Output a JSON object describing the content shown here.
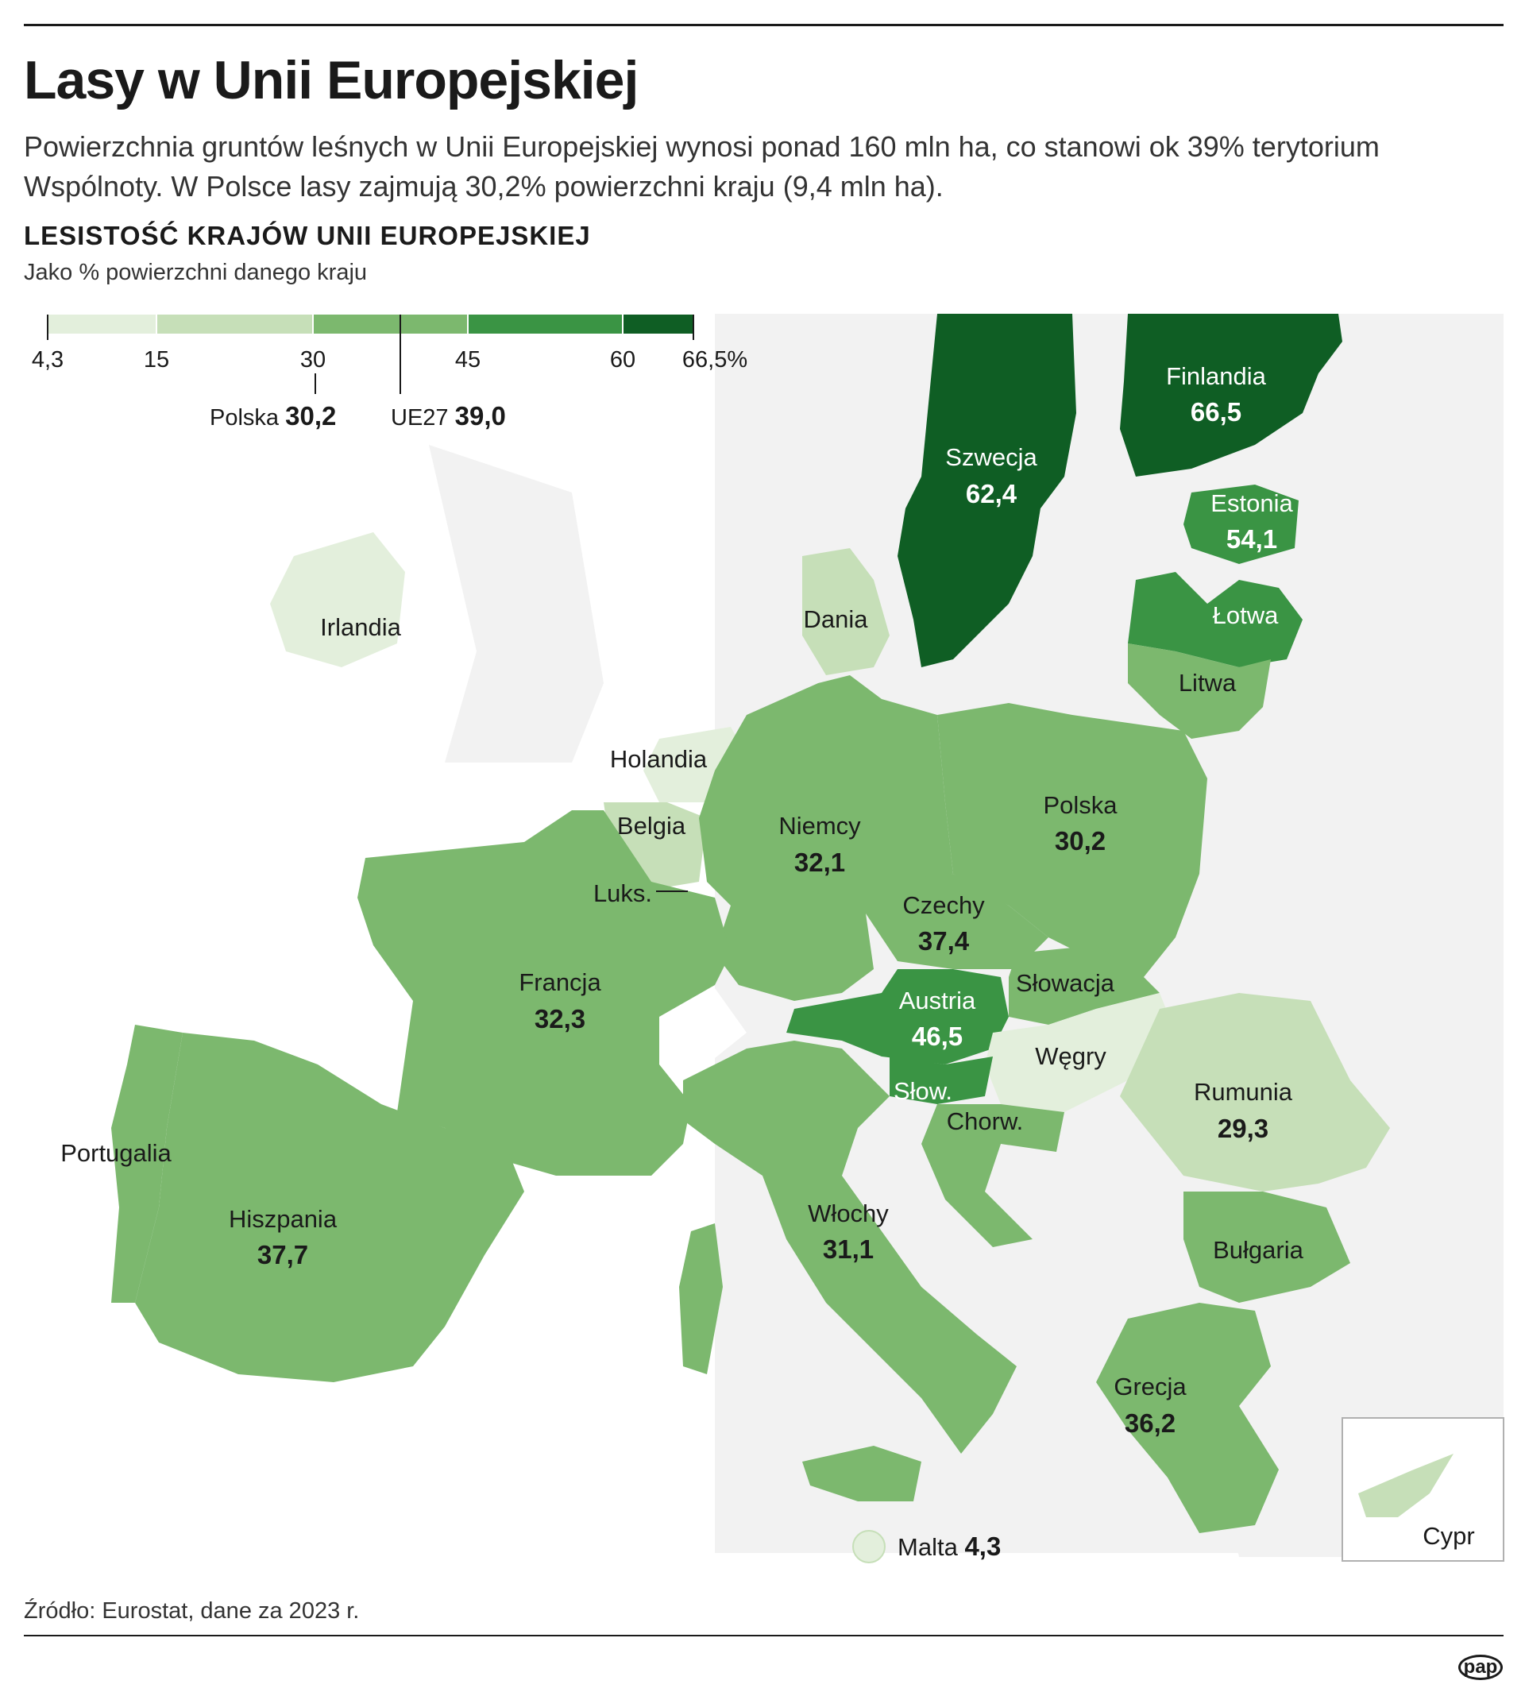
{
  "header": {
    "title": "Lasy w Unii Europejskiej",
    "intro": "Powierzchnia gruntów leśnych w Unii Europejskiej wynosi ponad 160 mln ha, co stanowi ok 39% terytorium Wspólnoty. W Polsce lasy zajmują 30,2% powierzchni kraju (9,4 mln ha).",
    "subheading": "LESISTOŚĆ KRAJÓW UNII EUROPEJSKIEJ",
    "unit_note": "Jako % powierzchni danego kraju"
  },
  "legend": {
    "breaks": [
      "4,3",
      "15",
      "30",
      "45",
      "60",
      "66,5%"
    ],
    "bin_colors": [
      "#e3efdc",
      "#c6dfb8",
      "#7cb86e",
      "#7cb86e",
      "#3a9444",
      "#0f5e24"
    ],
    "marker_polska": {
      "name": "Polska",
      "value": "30,2"
    },
    "marker_ue": {
      "name": "UE27",
      "value": "39,0"
    }
  },
  "colors": {
    "non_eu": "#f2f2f2",
    "sea": "#ffffff",
    "bin1": "#e3efdc",
    "bin2": "#c6dfb8",
    "bin3": "#7cb86e",
    "bin4": "#3a9444",
    "bin5": "#0f5e24"
  },
  "chart_data": {
    "type": "choropleth",
    "title": "LESISTOŚĆ KRAJÓW UNII EUROPEJSKIEJ",
    "unit": "Jako % powierzchni danego kraju",
    "scale_breaks": [
      4.3,
      15,
      30,
      45,
      60,
      66.5
    ],
    "reference": [
      {
        "name": "Polska",
        "value": 30.2
      },
      {
        "name": "UE27",
        "value": 39.0
      }
    ],
    "countries": [
      {
        "name": "Finlandia",
        "label": "66,5",
        "value": 66.5
      },
      {
        "name": "Szwecja",
        "label": "62,4",
        "value": 62.4
      },
      {
        "name": "Estonia",
        "label": "54,1",
        "value": 54.1
      },
      {
        "name": "Łotwa",
        "label": "",
        "value": null
      },
      {
        "name": "Litwa",
        "label": "",
        "value": null
      },
      {
        "name": "Dania",
        "label": "",
        "value": null
      },
      {
        "name": "Irlandia",
        "label": "",
        "value": null
      },
      {
        "name": "Holandia",
        "label": "",
        "value": null
      },
      {
        "name": "Belgia",
        "label": "",
        "value": null
      },
      {
        "name": "Luks.",
        "label": "",
        "value": null
      },
      {
        "name": "Niemcy",
        "label": "32,1",
        "value": 32.1
      },
      {
        "name": "Polska",
        "label": "30,2",
        "value": 30.2
      },
      {
        "name": "Czechy",
        "label": "37,4",
        "value": 37.4
      },
      {
        "name": "Słowacja",
        "label": "",
        "value": null
      },
      {
        "name": "Austria",
        "label": "46,5",
        "value": 46.5
      },
      {
        "name": "Węgry",
        "label": "",
        "value": null
      },
      {
        "name": "Rumunia",
        "label": "29,3",
        "value": 29.3
      },
      {
        "name": "Francja",
        "label": "32,3",
        "value": 32.3
      },
      {
        "name": "Słow.",
        "label": "",
        "value": null
      },
      {
        "name": "Chorw.",
        "label": "",
        "value": null
      },
      {
        "name": "Portugalia",
        "label": "",
        "value": null
      },
      {
        "name": "Hiszpania",
        "label": "37,7",
        "value": 37.7
      },
      {
        "name": "Włochy",
        "label": "31,1",
        "value": 31.1
      },
      {
        "name": "Bułgaria",
        "label": "",
        "value": null
      },
      {
        "name": "Grecja",
        "label": "36,2",
        "value": 36.2
      },
      {
        "name": "Malta",
        "label": "4,3",
        "value": 4.3
      },
      {
        "name": "Cypr",
        "label": "",
        "value": null
      }
    ]
  },
  "footer": {
    "source": "Źródło: Eurostat, dane za 2023 r.",
    "logo": "pap"
  }
}
